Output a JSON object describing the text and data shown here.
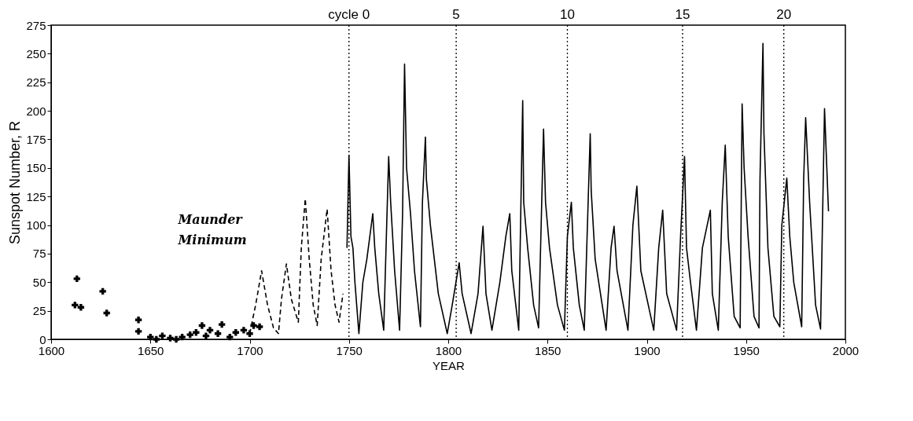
{
  "chart_data": {
    "type": "line",
    "xlabel": "YEAR",
    "ylabel": "Sunspot Number, R",
    "xlim": [
      1600,
      2000
    ],
    "xticks": [
      1600,
      1650,
      1700,
      1750,
      1800,
      1850,
      1900,
      1950,
      2000
    ],
    "ylim": [
      0,
      275
    ],
    "yticks": [
      0,
      25,
      50,
      75,
      100,
      125,
      150,
      175,
      200,
      225,
      250,
      275
    ],
    "series": [
      {
        "type": "scatter",
        "marker": "cross",
        "color": "#000000",
        "x": [
          1613,
          1612,
          1615,
          1626,
          1628,
          1644,
          1644,
          1650,
          1653,
          1656,
          1660,
          1663,
          1666,
          1670,
          1673,
          1676,
          1678,
          1680,
          1684,
          1686,
          1690,
          1693,
          1697,
          1700,
          1702,
          1705
        ],
        "values": [
          53,
          30,
          28,
          42,
          23,
          17,
          7,
          2,
          0,
          3,
          1,
          0,
          2,
          4,
          6,
          12,
          3,
          8,
          5,
          13,
          2,
          6,
          8,
          5,
          12,
          11
        ]
      },
      {
        "type": "line",
        "line_style": "dashed",
        "color": "#000000",
        "x": [
          1700,
          1703,
          1706,
          1709,
          1712,
          1714.5,
          1716,
          1718.5,
          1721,
          1724.5,
          1726,
          1728,
          1730,
          1732,
          1734,
          1736,
          1739,
          1741,
          1743,
          1745,
          1747
        ],
        "values": [
          5,
          30,
          60,
          30,
          10,
          5,
          35,
          66,
          35,
          15,
          80,
          123,
          70,
          30,
          12,
          70,
          114,
          60,
          30,
          15,
          40
        ]
      },
      {
        "line_style": "solid",
        "color": "#000000",
        "x": [
          1749,
          1750,
          1751,
          1752,
          1753,
          1755,
          1757,
          1759,
          1762,
          1763,
          1765,
          1767.5,
          1769,
          1770,
          1771,
          1773,
          1775.5,
          1777,
          1778,
          1779,
          1781,
          1783,
          1786,
          1787,
          1788.5,
          1789,
          1791,
          1795,
          1799.5,
          1802,
          1805.5,
          1807,
          1811.5,
          1815,
          1817.5,
          1819,
          1822,
          1826,
          1829,
          1831,
          1832,
          1835.5,
          1837.5,
          1838,
          1840,
          1843,
          1845.5,
          1848,
          1849,
          1851,
          1855,
          1858.5,
          1860,
          1862,
          1863,
          1866,
          1868.5,
          1871.5,
          1872,
          1874,
          1879.5,
          1882,
          1883.5,
          1885,
          1890.5,
          1893,
          1895,
          1897,
          1903.5,
          1906,
          1908,
          1910,
          1915,
          1917,
          1919,
          1920,
          1922,
          1925,
          1928,
          1932,
          1933,
          1936,
          1938,
          1939.5,
          1941,
          1944,
          1947,
          1948,
          1949,
          1951,
          1954,
          1956.5,
          1957,
          1958.5,
          1959,
          1961,
          1964,
          1967,
          1968,
          1970.5,
          1972,
          1974,
          1978,
          1979,
          1980,
          1982,
          1985,
          1987.5,
          1989.5,
          1991.5
        ],
        "values": [
          80,
          161,
          90,
          80,
          50,
          5,
          50,
          70,
          110,
          80,
          40,
          8,
          100,
          160,
          120,
          60,
          8,
          110,
          241,
          150,
          110,
          60,
          11,
          120,
          177,
          140,
          100,
          40,
          5,
          30,
          67,
          40,
          5,
          40,
          99,
          40,
          8,
          50,
          90,
          110,
          60,
          8,
          209,
          120,
          80,
          30,
          10,
          184,
          120,
          80,
          30,
          8,
          90,
          120,
          80,
          30,
          8,
          180,
          130,
          70,
          8,
          80,
          99,
          60,
          8,
          100,
          134,
          60,
          8,
          80,
          113,
          40,
          8,
          90,
          160,
          80,
          50,
          8,
          80,
          113,
          40,
          8,
          120,
          170,
          90,
          20,
          10,
          206,
          150,
          90,
          20,
          10,
          140,
          259,
          180,
          80,
          20,
          11,
          100,
          141,
          90,
          50,
          11,
          140,
          194,
          120,
          30,
          9,
          202,
          112
        ]
      }
    ],
    "ref_lines": [
      {
        "axis": "x",
        "value": 1750,
        "line_style": "dotted"
      },
      {
        "axis": "x",
        "value": 1804,
        "line_style": "dotted"
      },
      {
        "axis": "x",
        "value": 1860,
        "line_style": "dotted"
      },
      {
        "axis": "x",
        "value": 1918,
        "line_style": "dotted"
      },
      {
        "axis": "x",
        "value": 1969,
        "line_style": "dotted"
      }
    ],
    "annotations": [
      "Maunder Minimum",
      "cycle 0",
      "5",
      "10",
      "15",
      "20"
    ]
  }
}
